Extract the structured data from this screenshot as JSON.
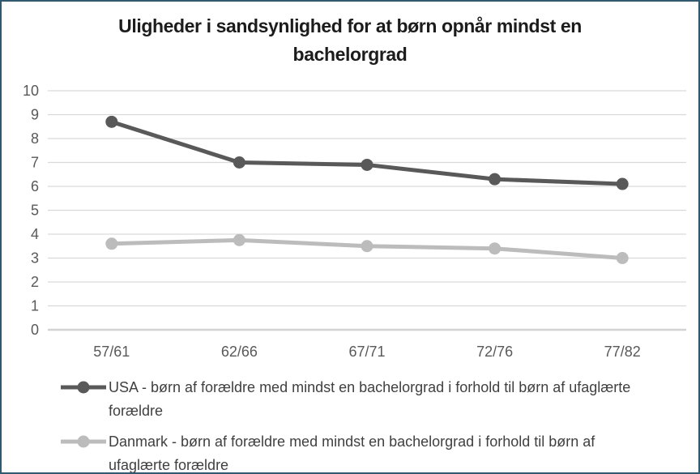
{
  "panel": {
    "background": "#ffffff",
    "border_color": "#315a70"
  },
  "chart_data": {
    "type": "line",
    "title": "Uligheder i sandsynlighed for at børn opnår mindst en bachelorgrad",
    "categories": [
      "57/61",
      "62/66",
      "67/71",
      "72/76",
      "77/82"
    ],
    "series": [
      {
        "name": "USA",
        "legend_label": "USA - børn af forældre med mindst en bachelorgrad i forhold til børn af ufaglærte forældre",
        "values": [
          8.7,
          7.0,
          6.9,
          6.3,
          6.1
        ],
        "color": "#595959",
        "marker": "circle"
      },
      {
        "name": "Danmark",
        "legend_label": "Danmark - børn af forældre med mindst en bachelorgrad i forhold til børn af ufaglærte forældre",
        "values": [
          3.6,
          3.75,
          3.5,
          3.4,
          3.0
        ],
        "color": "#bcbcbc",
        "marker": "circle"
      }
    ],
    "xlabel": "",
    "ylabel": "",
    "ylim": [
      0,
      10
    ],
    "yticks": [
      0,
      1,
      2,
      3,
      4,
      5,
      6,
      7,
      8,
      9,
      10
    ],
    "grid": true,
    "gridline_color": "#d9d9d9",
    "axis_line_color": "#d2d2d2",
    "tick_label_color": "#595959",
    "legend_position": "bottom",
    "legend_text_color": "#404040"
  }
}
